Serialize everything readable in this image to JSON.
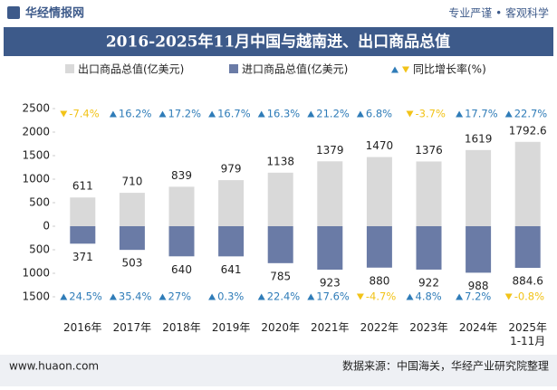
{
  "header": {
    "brand": "华经情报网",
    "slogan": "专业严谨 • 客观科学"
  },
  "chart_data": {
    "type": "diverging-bar",
    "title": "2016-2025年11月中国与越南进、出口商品总值",
    "categories": [
      "2016年",
      "2017年",
      "2018年",
      "2019年",
      "2020年",
      "2021年",
      "2022年",
      "2023年",
      "2024年",
      "2025年\n1-11月"
    ],
    "series": [
      {
        "name": "出口商品总值(亿美元)",
        "color": "#d9d9d9",
        "direction": "up",
        "values": [
          611,
          710,
          839,
          979,
          1138,
          1379,
          1470,
          1376,
          1619,
          1792.6
        ]
      },
      {
        "name": "进口商品总值(亿美元)",
        "color": "#6a7ba6",
        "direction": "down",
        "values": [
          371,
          503,
          640,
          641,
          785,
          923,
          880,
          922,
          988,
          884.6
        ]
      }
    ],
    "growth": {
      "name": "同比增长率(%)",
      "up_color": "#2f7cb8",
      "down_color": "#f2c318",
      "export": {
        "values": [
          -7.4,
          16.2,
          17.2,
          16.7,
          16.3,
          21.2,
          6.8,
          -3.7,
          17.7,
          22.7
        ],
        "value_labels": [
          "-7.4%",
          "16.2%",
          "17.2%",
          "16.7%",
          "16.3%",
          "21.2%",
          "6.8%",
          "-3.7%",
          "17.7%",
          "22.7%"
        ]
      },
      "import": {
        "values": [
          24.5,
          35.4,
          27,
          0.3,
          22.4,
          17.6,
          -4.7,
          4.8,
          7.2,
          -0.8
        ],
        "value_labels": [
          "24.5%",
          "35.4%",
          "27%",
          "0.3%",
          "22.4%",
          "17.6%",
          "-4.7%",
          "4.8%",
          "7.2%",
          "-0.8%"
        ]
      }
    },
    "ylim": [
      -1500,
      2500
    ],
    "yticks": [
      2500,
      2000,
      1500,
      1000,
      500,
      0,
      {
        "value": -500,
        "label": "500"
      },
      {
        "value": -1000,
        "label": "1000"
      },
      {
        "value": -1500,
        "label": "1500"
      }
    ],
    "grid": false
  },
  "footer": {
    "url": "www.huaon.com",
    "source": "数据来源：中国海关，华经产业研究院整理"
  }
}
